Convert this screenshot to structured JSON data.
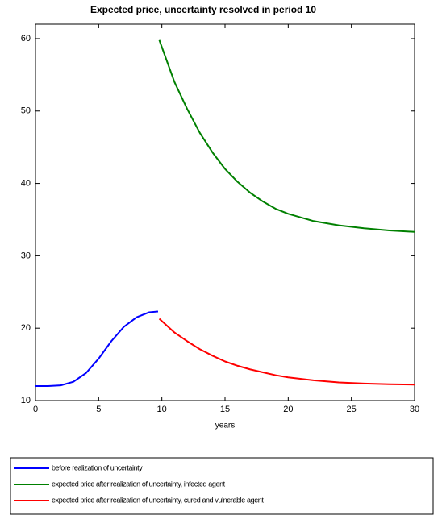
{
  "chart_data": {
    "type": "line",
    "title": "Expected price, uncertainty resolved in period 10",
    "x_label": "years",
    "x": [
      0,
      1,
      2,
      3,
      4,
      5,
      6,
      7,
      8,
      9,
      9.7,
      9.8,
      11,
      12,
      13,
      14,
      15,
      16,
      17,
      18,
      19,
      20,
      22,
      24,
      26,
      28,
      30
    ],
    "series": [
      {
        "name": "before realization of uncertainty",
        "color": "#0000ff",
        "values": [
          12,
          12,
          12.1,
          12.6,
          13.8,
          15.8,
          18.2,
          20.2,
          21.5,
          22.2,
          22.3,
          null,
          null,
          null,
          null,
          null,
          null,
          null,
          null,
          null,
          null,
          null,
          null,
          null,
          null,
          null,
          null
        ]
      },
      {
        "name": "expected price after realization of uncertainty, infected agent",
        "color": "#008000",
        "values": [
          null,
          null,
          null,
          null,
          null,
          null,
          null,
          null,
          null,
          null,
          null,
          59.8,
          54,
          50.3,
          47,
          44.3,
          42,
          40.2,
          38.7,
          37.5,
          36.5,
          35.8,
          34.8,
          34.2,
          33.8,
          33.5,
          33.3
        ]
      },
      {
        "name": "expected price after realization of uncertainty, cured and vulnerable agent",
        "color": "#ff0000",
        "values": [
          null,
          null,
          null,
          null,
          null,
          null,
          null,
          null,
          null,
          null,
          null,
          21.3,
          19.4,
          18.2,
          17.1,
          16.2,
          15.4,
          14.8,
          14.3,
          13.9,
          13.5,
          13.2,
          12.8,
          12.5,
          12.35,
          12.25,
          12.2
        ]
      }
    ],
    "xlim": [
      0,
      30
    ],
    "xticks": [
      0,
      5,
      10,
      15,
      20,
      25,
      30
    ],
    "ylim": [
      10,
      62
    ],
    "yticks": [
      10,
      20,
      30,
      40,
      50,
      60
    ]
  }
}
